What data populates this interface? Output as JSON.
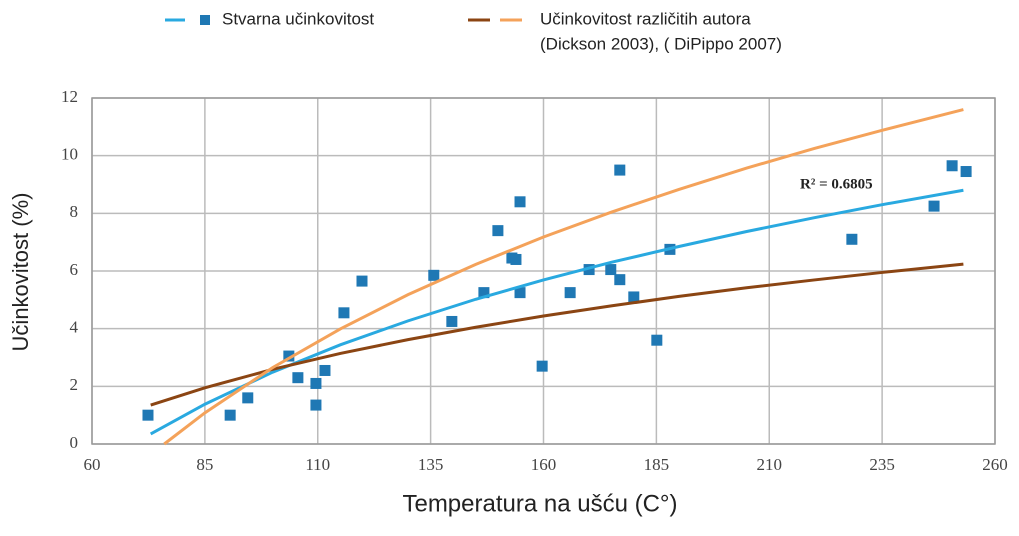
{
  "chart_data": {
    "type": "scatter",
    "xlabel": "Temperatura na ušću (C°)",
    "ylabel": "Učinkovitost (%)",
    "xlim": [
      60,
      260
    ],
    "xticks": [
      60,
      85,
      110,
      135,
      160,
      185,
      210,
      235,
      260
    ],
    "ylim": [
      0,
      12
    ],
    "yticks": [
      0,
      2,
      4,
      6,
      8,
      10,
      12
    ],
    "grid": true,
    "legend_note": "(Dickson 2003), ( DiPippo 2007)",
    "annotation": "R² = 0.6805",
    "series": [
      {
        "name": "Stvarna učinkovitost",
        "mode": "markers",
        "color": "#1f78b4",
        "x": [
          72.4,
          90.6,
          94.5,
          103.6,
          105.6,
          109.6,
          109.6,
          111.6,
          115.8,
          119.8,
          135.7,
          139.7,
          146.8,
          149.9,
          153.0,
          153.9,
          154.8,
          154.8,
          159.7,
          165.9,
          170.1,
          174.9,
          176.9,
          176.9,
          180,
          185.1,
          188,
          228.3,
          246.5,
          250.5,
          253.6
        ],
        "values": [
          1.0,
          1.0,
          1.6,
          3.05,
          2.3,
          2.1,
          1.35,
          2.55,
          4.55,
          5.65,
          5.85,
          4.25,
          5.25,
          7.4,
          6.45,
          6.4,
          5.25,
          8.4,
          2.7,
          5.25,
          6.05,
          6.05,
          5.7,
          9.5,
          5.1,
          3.6,
          6.75,
          7.1,
          8.25,
          9.65,
          9.45
        ]
      },
      {
        "mode": "line",
        "color": "#29a9e0",
        "x": [
          73,
          85,
          100,
          115,
          130,
          145,
          160,
          175,
          190,
          205,
          220,
          235,
          253
        ],
        "values": [
          0.35,
          1.38,
          2.49,
          3.44,
          4.27,
          5.02,
          5.69,
          6.3,
          6.85,
          7.37,
          7.85,
          8.3,
          8.8
        ]
      },
      {
        "name": "Učinkovitost različitih autora",
        "mode": "line",
        "color": "#8b4513",
        "x": [
          73,
          85,
          100,
          115,
          130,
          145,
          160,
          175,
          190,
          205,
          220,
          235,
          253
        ],
        "values": [
          1.35,
          1.95,
          2.59,
          3.14,
          3.62,
          4.05,
          4.44,
          4.79,
          5.12,
          5.42,
          5.69,
          5.95,
          6.24
        ]
      },
      {
        "mode": "line",
        "color": "#f4a25a",
        "x": [
          76,
          85,
          100,
          115,
          130,
          145,
          160,
          175,
          190,
          205,
          220,
          235,
          253
        ],
        "values": [
          0,
          1.08,
          2.65,
          3.99,
          5.18,
          6.23,
          7.18,
          8.04,
          8.83,
          9.57,
          10.25,
          10.88,
          11.6
        ]
      }
    ]
  }
}
